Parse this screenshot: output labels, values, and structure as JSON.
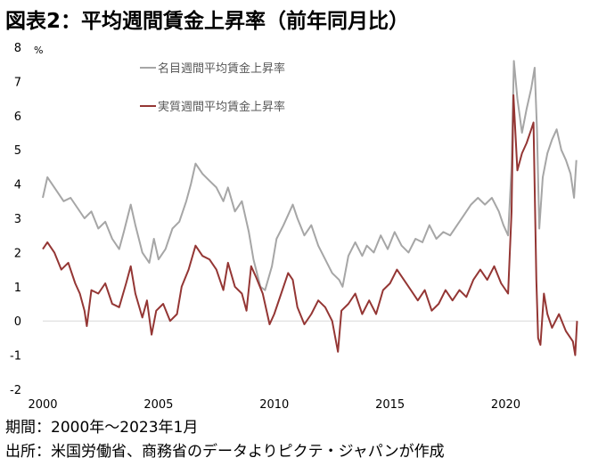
{
  "title": "図表2：平均週間賃金上昇率（前年同月比）",
  "footnote_period": "期間：2000年～2023年1月",
  "footnote_source": "出所：米国労働省、商務省のデータよりピクテ・ジャパンが作成",
  "colors": {
    "nominal": "#a6a6a6",
    "real": "#943634",
    "zero_line": "#d9d9d9",
    "axis_text": "#000000"
  },
  "chart_data": {
    "type": "line",
    "y_unit": "%",
    "xlim": [
      2000,
      2023.1
    ],
    "ylim": [
      -2,
      8
    ],
    "y_ticks": [
      8,
      7,
      6,
      5,
      4,
      3,
      2,
      1,
      0,
      -1,
      -2
    ],
    "x_ticks": [
      2000,
      2005,
      2010,
      2015,
      2020
    ],
    "grid": false,
    "legend_placement": "top-left",
    "series": [
      {
        "name": "名目週間平均賃金上昇率",
        "color": "#a6a6a6",
        "points": [
          [
            2000.0,
            3.6
          ],
          [
            2000.2,
            4.2
          ],
          [
            2000.5,
            3.9
          ],
          [
            2000.9,
            3.5
          ],
          [
            2001.2,
            3.6
          ],
          [
            2001.5,
            3.3
          ],
          [
            2001.8,
            3.0
          ],
          [
            2002.1,
            3.2
          ],
          [
            2002.4,
            2.7
          ],
          [
            2002.7,
            2.9
          ],
          [
            2003.0,
            2.4
          ],
          [
            2003.3,
            2.1
          ],
          [
            2003.5,
            2.6
          ],
          [
            2003.8,
            3.4
          ],
          [
            2004.0,
            2.8
          ],
          [
            2004.3,
            2.0
          ],
          [
            2004.6,
            1.7
          ],
          [
            2004.8,
            2.4
          ],
          [
            2005.0,
            1.8
          ],
          [
            2005.3,
            2.1
          ],
          [
            2005.6,
            2.7
          ],
          [
            2005.9,
            2.9
          ],
          [
            2006.2,
            3.5
          ],
          [
            2006.4,
            4.0
          ],
          [
            2006.6,
            4.6
          ],
          [
            2006.9,
            4.3
          ],
          [
            2007.2,
            4.1
          ],
          [
            2007.5,
            3.9
          ],
          [
            2007.8,
            3.5
          ],
          [
            2008.0,
            3.9
          ],
          [
            2008.3,
            3.2
          ],
          [
            2008.6,
            3.5
          ],
          [
            2008.9,
            2.6
          ],
          [
            2009.1,
            1.8
          ],
          [
            2009.4,
            1.0
          ],
          [
            2009.6,
            0.9
          ],
          [
            2009.9,
            1.6
          ],
          [
            2010.1,
            2.4
          ],
          [
            2010.4,
            2.8
          ],
          [
            2010.6,
            3.1
          ],
          [
            2010.8,
            3.4
          ],
          [
            2011.0,
            3.0
          ],
          [
            2011.3,
            2.5
          ],
          [
            2011.6,
            2.8
          ],
          [
            2011.9,
            2.2
          ],
          [
            2012.2,
            1.8
          ],
          [
            2012.5,
            1.4
          ],
          [
            2012.8,
            1.2
          ],
          [
            2012.95,
            1.0
          ],
          [
            2013.2,
            1.9
          ],
          [
            2013.5,
            2.3
          ],
          [
            2013.8,
            1.9
          ],
          [
            2014.0,
            2.2
          ],
          [
            2014.3,
            2.0
          ],
          [
            2014.6,
            2.5
          ],
          [
            2014.9,
            2.1
          ],
          [
            2015.2,
            2.6
          ],
          [
            2015.5,
            2.2
          ],
          [
            2015.8,
            2.0
          ],
          [
            2016.1,
            2.4
          ],
          [
            2016.4,
            2.3
          ],
          [
            2016.7,
            2.8
          ],
          [
            2017.0,
            2.4
          ],
          [
            2017.3,
            2.6
          ],
          [
            2017.6,
            2.5
          ],
          [
            2017.9,
            2.8
          ],
          [
            2018.2,
            3.1
          ],
          [
            2018.5,
            3.4
          ],
          [
            2018.8,
            3.6
          ],
          [
            2019.1,
            3.4
          ],
          [
            2019.4,
            3.6
          ],
          [
            2019.7,
            3.2
          ],
          [
            2019.9,
            2.8
          ],
          [
            2020.1,
            2.5
          ],
          [
            2020.25,
            4.5
          ],
          [
            2020.35,
            7.6
          ],
          [
            2020.5,
            6.5
          ],
          [
            2020.7,
            5.5
          ],
          [
            2020.9,
            6.2
          ],
          [
            2021.1,
            6.8
          ],
          [
            2021.25,
            7.4
          ],
          [
            2021.35,
            5.6
          ],
          [
            2021.45,
            2.7
          ],
          [
            2021.6,
            4.2
          ],
          [
            2021.8,
            4.9
          ],
          [
            2022.0,
            5.3
          ],
          [
            2022.2,
            5.6
          ],
          [
            2022.4,
            5.0
          ],
          [
            2022.6,
            4.7
          ],
          [
            2022.8,
            4.3
          ],
          [
            2022.95,
            3.6
          ],
          [
            2023.05,
            4.7
          ]
        ]
      },
      {
        "name": "実質週間平均賃金上昇率",
        "color": "#943634",
        "points": [
          [
            2000.0,
            2.1
          ],
          [
            2000.2,
            2.3
          ],
          [
            2000.5,
            2.0
          ],
          [
            2000.8,
            1.5
          ],
          [
            2001.1,
            1.7
          ],
          [
            2001.4,
            1.1
          ],
          [
            2001.6,
            0.8
          ],
          [
            2001.8,
            0.3
          ],
          [
            2001.9,
            -0.15
          ],
          [
            2002.1,
            0.9
          ],
          [
            2002.4,
            0.8
          ],
          [
            2002.7,
            1.1
          ],
          [
            2003.0,
            0.5
          ],
          [
            2003.3,
            0.4
          ],
          [
            2003.6,
            1.1
          ],
          [
            2003.8,
            1.6
          ],
          [
            2004.0,
            0.8
          ],
          [
            2004.3,
            0.1
          ],
          [
            2004.5,
            0.6
          ],
          [
            2004.7,
            -0.4
          ],
          [
            2004.9,
            0.3
          ],
          [
            2005.2,
            0.5
          ],
          [
            2005.5,
            0.0
          ],
          [
            2005.8,
            0.2
          ],
          [
            2006.0,
            1.0
          ],
          [
            2006.3,
            1.5
          ],
          [
            2006.6,
            2.2
          ],
          [
            2006.9,
            1.9
          ],
          [
            2007.2,
            1.8
          ],
          [
            2007.5,
            1.5
          ],
          [
            2007.8,
            0.9
          ],
          [
            2008.0,
            1.7
          ],
          [
            2008.3,
            1.0
          ],
          [
            2008.6,
            0.8
          ],
          [
            2008.8,
            0.3
          ],
          [
            2009.0,
            1.6
          ],
          [
            2009.2,
            1.3
          ],
          [
            2009.5,
            0.8
          ],
          [
            2009.8,
            -0.1
          ],
          [
            2010.0,
            0.2
          ],
          [
            2010.3,
            0.8
          ],
          [
            2010.6,
            1.4
          ],
          [
            2010.8,
            1.2
          ],
          [
            2011.0,
            0.4
          ],
          [
            2011.3,
            -0.1
          ],
          [
            2011.6,
            0.2
          ],
          [
            2011.9,
            0.6
          ],
          [
            2012.2,
            0.4
          ],
          [
            2012.5,
            0.0
          ],
          [
            2012.75,
            -0.9
          ],
          [
            2012.9,
            0.3
          ],
          [
            2013.2,
            0.5
          ],
          [
            2013.5,
            0.8
          ],
          [
            2013.8,
            0.2
          ],
          [
            2014.1,
            0.6
          ],
          [
            2014.4,
            0.2
          ],
          [
            2014.7,
            0.9
          ],
          [
            2015.0,
            1.1
          ],
          [
            2015.3,
            1.5
          ],
          [
            2015.6,
            1.2
          ],
          [
            2015.9,
            0.9
          ],
          [
            2016.2,
            0.6
          ],
          [
            2016.5,
            0.9
          ],
          [
            2016.8,
            0.3
          ],
          [
            2017.1,
            0.5
          ],
          [
            2017.4,
            0.9
          ],
          [
            2017.7,
            0.6
          ],
          [
            2018.0,
            0.9
          ],
          [
            2018.3,
            0.7
          ],
          [
            2018.6,
            1.2
          ],
          [
            2018.9,
            1.5
          ],
          [
            2019.2,
            1.2
          ],
          [
            2019.5,
            1.6
          ],
          [
            2019.8,
            1.1
          ],
          [
            2020.1,
            0.8
          ],
          [
            2020.25,
            3.2
          ],
          [
            2020.33,
            6.6
          ],
          [
            2020.5,
            4.4
          ],
          [
            2020.7,
            4.9
          ],
          [
            2020.9,
            5.2
          ],
          [
            2021.1,
            5.6
          ],
          [
            2021.2,
            5.8
          ],
          [
            2021.32,
            1.2
          ],
          [
            2021.4,
            -0.5
          ],
          [
            2021.5,
            -0.7
          ],
          [
            2021.65,
            0.8
          ],
          [
            2021.8,
            0.2
          ],
          [
            2022.0,
            -0.2
          ],
          [
            2022.3,
            0.2
          ],
          [
            2022.6,
            -0.3
          ],
          [
            2022.9,
            -0.6
          ],
          [
            2023.0,
            -1.0
          ],
          [
            2023.08,
            0.0
          ]
        ]
      }
    ]
  }
}
